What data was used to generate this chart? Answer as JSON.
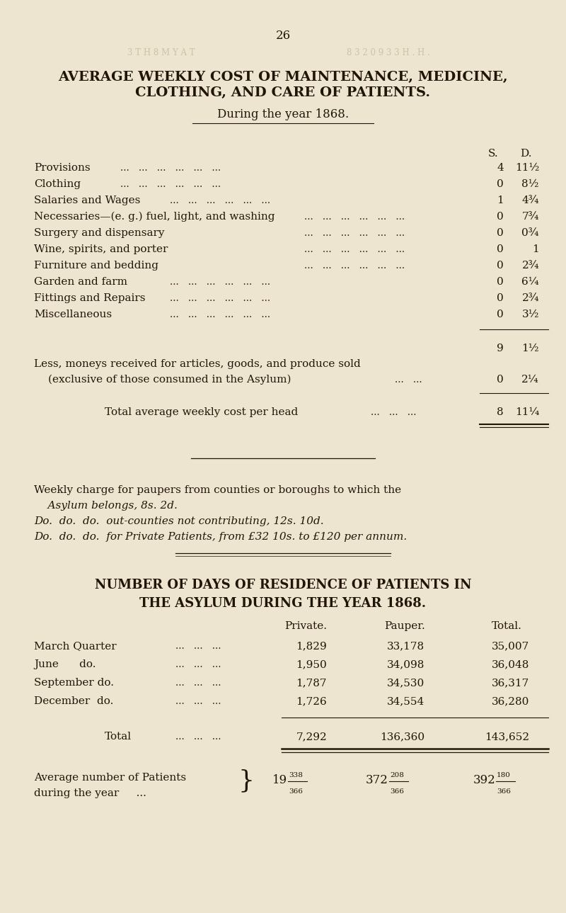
{
  "page_number": "26",
  "bg_color": "#ede5d0",
  "title_line1": "AVERAGE WEEKLY COST OF MAINTENANCE, MEDICINE,",
  "title_line2": "CLOTHING, AND CARE OF PATIENTS.",
  "subtitle": "During the year 1868.",
  "col_header_s": "S.",
  "col_header_d": "D.",
  "cost_items": [
    {
      "label": "Provisions",
      "s": "4",
      "d": "11½"
    },
    {
      "label": "Clothing",
      "s": "0",
      "d": "8½"
    },
    {
      "label": "Salaries and Wages",
      "s": "1",
      "d": "4¾"
    },
    {
      "label": "Necessaries—(e. g.) fuel, light, and washing",
      "s": "0",
      "d": "7¾"
    },
    {
      "label": "Surgery and dispensary",
      "s": "0",
      "d": "0¾"
    },
    {
      "label": "Wine, spirits, and porter",
      "s": "0",
      "d": "1"
    },
    {
      "label": "Furniture and bedding",
      "s": "0",
      "d": "2¾"
    },
    {
      "label": "Garden and farm",
      "s": "0",
      "d": "6¼"
    },
    {
      "label": "Fittings and Repairs",
      "s": "0",
      "d": "2¾"
    },
    {
      "label": "Miscellaneous",
      "s": "0",
      "d": "3½"
    }
  ],
  "subtotal_s": "9",
  "subtotal_d": "1½",
  "less_label_line1": "Less, moneys received for articles, goods, and produce sold",
  "less_label_line2": "(exclusive of those consumed in the Asylum)",
  "less_s": "0",
  "less_d": "2¼",
  "total_label": "Total average weekly cost per head",
  "total_s": "8",
  "total_d": "11¼",
  "weekly_charge_line1": "Weekly charge for paupers from counties or boroughs to which the",
  "weekly_charge_line2": "    Asylum belongs, 8s. 2d.",
  "do_line1": "Do.  do.  do.  out-counties not contributing, 12s. 10d.",
  "do_line2": "Do.  do.  do.  for Private Patients, from £32 10s. to £120 per annum.",
  "section2_title1": "NUMBER OF DAYS OF RESIDENCE OF PATIENTS IN",
  "section2_title2": "THE ASYLUM DURING THE YEAR 1868.",
  "table_rows": [
    {
      "label": "March Quarter",
      "dots": "...   ...   ...",
      "private": "1,829",
      "pauper": "33,178",
      "total": "35,007"
    },
    {
      "label": "June      do.",
      "dots": "...   ...   ...",
      "private": "1,950",
      "pauper": "34,098",
      "total": "36,048"
    },
    {
      "label": "September do.",
      "dots": "...   ...   ...",
      "private": "1,787",
      "pauper": "34,530",
      "total": "36,317"
    },
    {
      "label": "December  do.",
      "dots": "...   ...   ...",
      "private": "1,726",
      "pauper": "34,554",
      "total": "36,280"
    }
  ],
  "total_row": {
    "label": "Total",
    "private": "7,292",
    "pauper": "136,360",
    "total": "143,652"
  },
  "avg_label1": "Average number of Patients",
  "avg_label2": "during the year",
  "avg_private_main": "19",
  "avg_private_frac_num": "338",
  "avg_private_frac_den": "366",
  "avg_pauper_main": "372",
  "avg_pauper_frac_num": "208",
  "avg_pauper_frac_den": "366",
  "avg_total_main": "392",
  "avg_total_frac_num": "180",
  "avg_total_frac_den": "366"
}
